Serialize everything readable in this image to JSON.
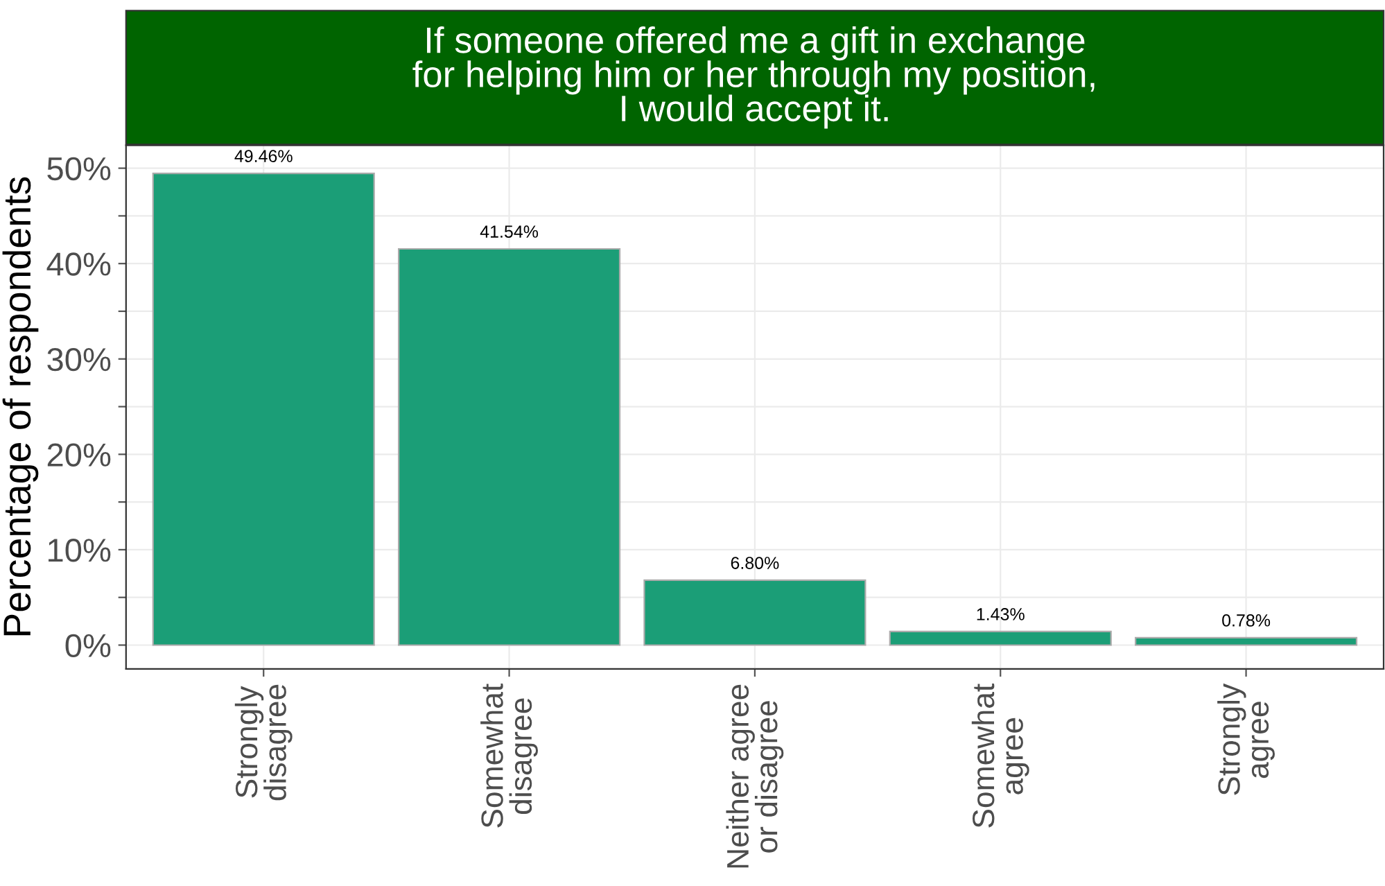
{
  "chart_data": {
    "type": "bar",
    "title": "If someone offered me a gift in exchange\nfor helping him or her through my position,\nI would accept it.",
    "ylabel": "Percentage of respondents",
    "categories": [
      "Strongly\ndisagree",
      "Somewhat\ndisagree",
      "Neither agree\nor disagree",
      "Somewhat\nagree",
      "Strongly\nagree"
    ],
    "values": [
      49.46,
      41.54,
      6.8,
      1.43,
      0.78
    ],
    "value_labels": [
      "49.46%",
      "41.54%",
      "6.80%",
      "1.43%",
      "0.78%"
    ],
    "color": "#1b9e77",
    "ylim": [
      -2.5,
      52.4
    ],
    "yticks": [
      {
        "value": 0,
        "label": "0%"
      },
      {
        "value": 5,
        "label": null
      },
      {
        "value": 10,
        "label": "10%"
      },
      {
        "value": 15,
        "label": null
      },
      {
        "value": 20,
        "label": "20%"
      },
      {
        "value": 25,
        "label": null
      },
      {
        "value": 30,
        "label": "30%"
      },
      {
        "value": 35,
        "label": null
      },
      {
        "value": 40,
        "label": "40%"
      },
      {
        "value": 45,
        "label": null
      },
      {
        "value": 50,
        "label": "50%"
      }
    ],
    "grid": true
  }
}
